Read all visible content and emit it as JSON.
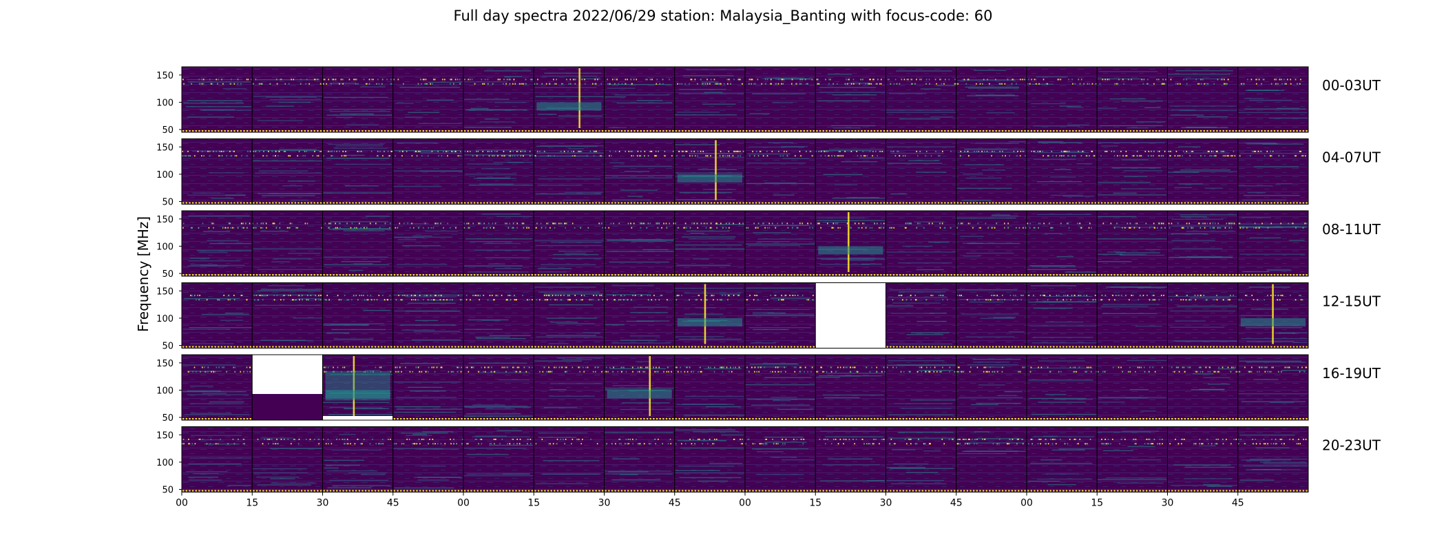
{
  "title": "Full day spectra 2022/06/29 station: Malaysia_Banting with focus-code: 60",
  "colors": {
    "background": "#440154",
    "stripe_dark": "#3a0a55",
    "stripe_mid": "#482878",
    "teal": "#21918c",
    "blue": "#31688e",
    "green": "#5ec962",
    "yellow": "#fde725",
    "missing": "#ffffff",
    "panel_border": "#000000"
  },
  "chart_data": {
    "type": "heatmap",
    "title": "Full day spectra 2022/06/29 station: Malaysia_Banting with focus-code: 60",
    "ylabel": "Frequency [MHz]",
    "xlabel": "",
    "ylim": [
      45,
      165
    ],
    "y_ticks": [
      "50",
      "100",
      "150"
    ],
    "x_ticks": [
      "00",
      "15",
      "30",
      "45",
      "00",
      "15",
      "30",
      "45",
      "00",
      "15",
      "30",
      "45",
      "00",
      "15",
      "30",
      "45"
    ],
    "minutes_per_panel": 15,
    "panels_per_row": 16,
    "rows": [
      {
        "label": "00-03UT",
        "missing": [],
        "partial_missing": [],
        "bright_bursts": [
          5
        ]
      },
      {
        "label": "04-07UT",
        "missing": [],
        "partial_missing": [],
        "bright_bursts": [
          7
        ]
      },
      {
        "label": "08-11UT",
        "missing": [],
        "partial_missing": [],
        "bright_bursts": [
          9
        ]
      },
      {
        "label": "12-15UT",
        "missing": [
          9
        ],
        "partial_missing": [],
        "bright_bursts": [
          7,
          15
        ]
      },
      {
        "label": "16-19UT",
        "missing": [],
        "partial_missing": [
          1,
          2
        ],
        "bright_bursts": [
          2,
          6
        ]
      },
      {
        "label": "20-23UT",
        "missing": [],
        "partial_missing": [],
        "bright_bursts": []
      }
    ]
  }
}
